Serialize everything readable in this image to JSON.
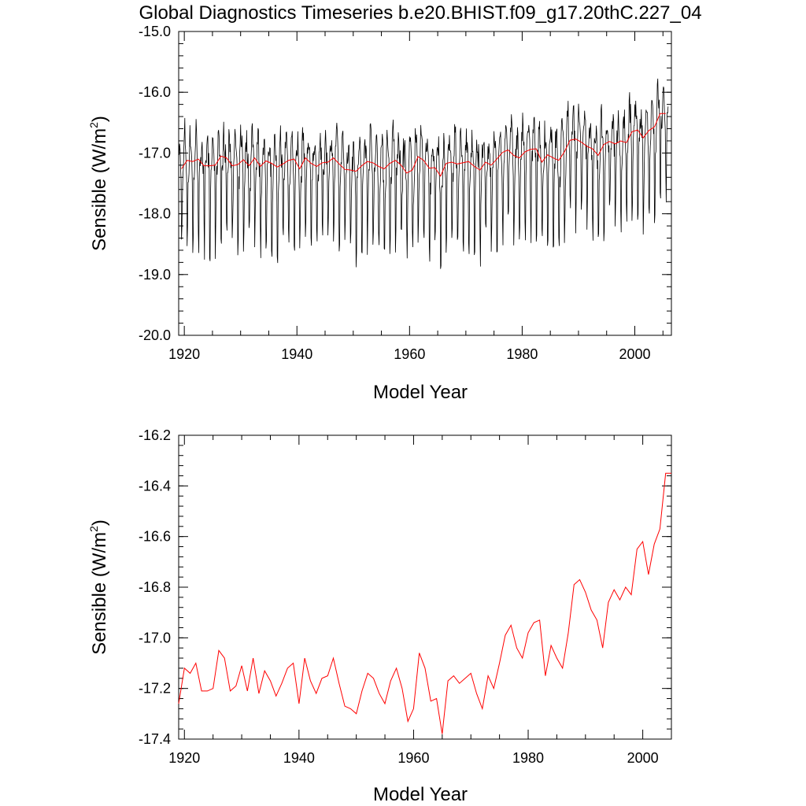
{
  "title": "Global Diagnostics Timeseries b.e20.BHIST.f09_g17.20thC.227_04",
  "colors": {
    "monthly": "#000000",
    "annual": "#ff0000"
  },
  "chart_data": [
    {
      "type": "line",
      "xlabel": "Model Year",
      "ylabel": "Sensible (W/m",
      "ylabel_sup": "2",
      "ylabel_end": ")",
      "xlim": [
        1919.0,
        2006.5
      ],
      "ylim": [
        -20.0,
        -15.0
      ],
      "xticks": [
        1920,
        1940,
        1960,
        1980,
        2000
      ],
      "xtick_labels": [
        "1920",
        "1940",
        "1960",
        "1980",
        "2000"
      ],
      "yticks": [
        -20.0,
        -19.0,
        -18.0,
        -17.0,
        -16.0,
        -15.0
      ],
      "ytick_labels": [
        "-20.0",
        "-19.0",
        "-18.0",
        "-17.0",
        "-16.0",
        "-15.0"
      ],
      "series": [
        {
          "style": "monthly",
          "color": "#000000",
          "x_start": 1919.0,
          "step": 0.08333,
          "note_seasonal": true
        },
        {
          "style": "annual",
          "color": "#ff0000"
        }
      ]
    },
    {
      "type": "line",
      "xlabel": "Model Year",
      "ylabel": "Sensible (W/m",
      "ylabel_sup": "2",
      "ylabel_end": ")",
      "xlim": [
        1919.0,
        2005.0
      ],
      "ylim": [
        -17.4,
        -16.2
      ],
      "xticks": [
        1920,
        1940,
        1960,
        1980,
        2000
      ],
      "xtick_labels": [
        "1920",
        "1940",
        "1960",
        "1980",
        "2000"
      ],
      "yticks": [
        -17.4,
        -17.2,
        -17.0,
        -16.8,
        -16.6,
        -16.4,
        -16.2
      ],
      "ytick_labels": [
        "-17.4",
        "-17.2",
        "-17.0",
        "-16.8",
        "-16.6",
        "-16.4",
        "-16.2"
      ],
      "series": [
        {
          "color": "#ff0000",
          "x": [
            1919,
            1920,
            1921,
            1922,
            1923,
            1924,
            1925,
            1926,
            1927,
            1928,
            1929,
            1930,
            1931,
            1932,
            1933,
            1934,
            1935,
            1936,
            1937,
            1938,
            1939,
            1940,
            1941,
            1942,
            1943,
            1944,
            1945,
            1946,
            1947,
            1948,
            1949,
            1950,
            1951,
            1952,
            1953,
            1954,
            1955,
            1956,
            1957,
            1958,
            1959,
            1960,
            1961,
            1962,
            1963,
            1964,
            1965,
            1966,
            1967,
            1968,
            1969,
            1970,
            1971,
            1972,
            1973,
            1974,
            1975,
            1976,
            1977,
            1978,
            1979,
            1980,
            1981,
            1982,
            1983,
            1984,
            1985,
            1986,
            1987,
            1988,
            1989,
            1990,
            1991,
            1992,
            1993,
            1994,
            1995,
            1996,
            1997,
            1998,
            1999,
            2000,
            2001,
            2002,
            2003,
            2004,
            2005
          ],
          "values": [
            -17.26,
            -17.12,
            -17.14,
            -17.1,
            -17.21,
            -17.21,
            -17.2,
            -17.05,
            -17.08,
            -17.21,
            -17.19,
            -17.11,
            -17.21,
            -17.08,
            -17.22,
            -17.13,
            -17.17,
            -17.23,
            -17.18,
            -17.12,
            -17.1,
            -17.26,
            -17.08,
            -17.17,
            -17.22,
            -17.16,
            -17.15,
            -17.08,
            -17.18,
            -17.27,
            -17.28,
            -17.3,
            -17.21,
            -17.14,
            -17.16,
            -17.22,
            -17.26,
            -17.17,
            -17.12,
            -17.2,
            -17.33,
            -17.28,
            -17.06,
            -17.12,
            -17.25,
            -17.24,
            -17.38,
            -17.17,
            -17.15,
            -17.18,
            -17.16,
            -17.14,
            -17.22,
            -17.28,
            -17.15,
            -17.2,
            -17.1,
            -16.99,
            -16.95,
            -17.04,
            -17.08,
            -16.98,
            -16.94,
            -16.93,
            -17.15,
            -17.03,
            -17.08,
            -17.12,
            -16.98,
            -16.79,
            -16.77,
            -16.82,
            -16.89,
            -16.93,
            -17.04,
            -16.86,
            -16.81,
            -16.85,
            -16.8,
            -16.83,
            -16.65,
            -16.62,
            -16.75,
            -16.63,
            -16.57,
            -16.35,
            -16.35
          ]
        }
      ]
    }
  ]
}
